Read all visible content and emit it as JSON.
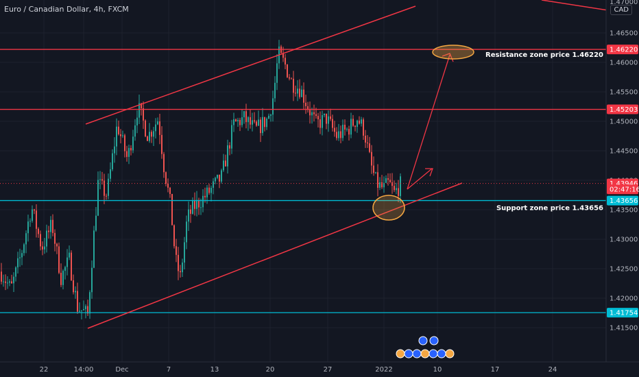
{
  "header": {
    "title": "Euro / Canadian Dollar, 4h, FXCM",
    "currency": "CAD"
  },
  "chart_data": {
    "type": "candlestick",
    "symbol": "EUR/CAD",
    "timeframe": "4h",
    "source": "FXCM",
    "ylim": [
      1.4125,
      1.47
    ],
    "y_tick_labels": [
      "1.41500",
      "1.42000",
      "1.42500",
      "1.43000",
      "1.43500",
      "1.44000",
      "1.44500",
      "1.45000",
      "1.45500",
      "1.46000",
      "1.46500"
    ],
    "top_tick_label": "1.47000",
    "x_tick_labels": [
      "22",
      "14:00",
      "Dec",
      "7",
      "13",
      "20",
      "27",
      "2022",
      "10",
      "17",
      "24"
    ],
    "price_path": [
      [
        0,
        1.4245
      ],
      [
        15,
        1.4215
      ],
      [
        30,
        1.4275
      ],
      [
        45,
        1.4355
      ],
      [
        60,
        1.4285
      ],
      [
        75,
        1.4325
      ],
      [
        88,
        1.4235
      ],
      [
        100,
        1.4265
      ],
      [
        112,
        1.4185
      ],
      [
        127,
        1.4172
      ],
      [
        133,
        1.4265
      ],
      [
        142,
        1.4395
      ],
      [
        155,
        1.4375
      ],
      [
        170,
        1.4495
      ],
      [
        185,
        1.4435
      ],
      [
        200,
        1.4525
      ],
      [
        215,
        1.4475
      ],
      [
        230,
        1.4505
      ],
      [
        238,
        1.4425
      ],
      [
        248,
        1.4355
      ],
      [
        255,
        1.4265
      ],
      [
        262,
        1.4235
      ],
      [
        272,
        1.4335
      ],
      [
        282,
        1.4355
      ],
      [
        300,
        1.4375
      ],
      [
        322,
        1.4405
      ],
      [
        340,
        1.4495
      ],
      [
        355,
        1.4505
      ],
      [
        372,
        1.4485
      ],
      [
        390,
        1.4505
      ],
      [
        398,
        1.4545
      ],
      [
        405,
        1.4615
      ],
      [
        415,
        1.4595
      ],
      [
        425,
        1.4565
      ],
      [
        437,
        1.4555
      ],
      [
        448,
        1.4525
      ],
      [
        460,
        1.4495
      ],
      [
        475,
        1.4505
      ],
      [
        490,
        1.4475
      ],
      [
        505,
        1.4485
      ],
      [
        520,
        1.4505
      ],
      [
        530,
        1.4485
      ],
      [
        540,
        1.4425
      ],
      [
        548,
        1.4395
      ],
      [
        558,
        1.4385
      ],
      [
        566,
        1.4395
      ],
      [
        574,
        1.4378
      ],
      [
        584,
        1.4394
      ]
    ],
    "lines": {
      "resistance_upper": {
        "price": 1.4622,
        "color": "#f23645"
      },
      "resistance_lower": {
        "price": 1.45203,
        "color": "#f23645"
      },
      "support": {
        "price": 1.43656,
        "color": "#00bcd4"
      },
      "lower_support": {
        "price": 1.41754,
        "color": "#00bcd4"
      },
      "current_price": {
        "price": 1.43946,
        "color": "#f23645"
      }
    },
    "price_labels": [
      {
        "text": "1.46220",
        "price": 1.4622,
        "color": "#f23645"
      },
      {
        "text": "1.45203",
        "price": 1.45203,
        "color": "#f23645"
      },
      {
        "text": "1.43946",
        "price": 1.43946,
        "color": "#f23645"
      },
      {
        "text": "02:47:16",
        "price": 1.43846,
        "color": "#f23645"
      },
      {
        "text": "1.43656",
        "price": 1.43656,
        "color": "#00bcd4"
      },
      {
        "text": "1.41754",
        "price": 1.41754,
        "color": "#00bcd4"
      }
    ],
    "annotations": [
      {
        "text": "Resistance zone price 1.46220",
        "price": 1.4622
      },
      {
        "text": "Support zone price 1.43656",
        "price": 1.43656
      }
    ],
    "colors": {
      "up": "#26a69a",
      "down": "#ef5350",
      "trendline": "#f23645",
      "highlight": "#f5a742",
      "background": "#131722",
      "grid": "#1e222d",
      "text": "#b2b5be"
    }
  }
}
